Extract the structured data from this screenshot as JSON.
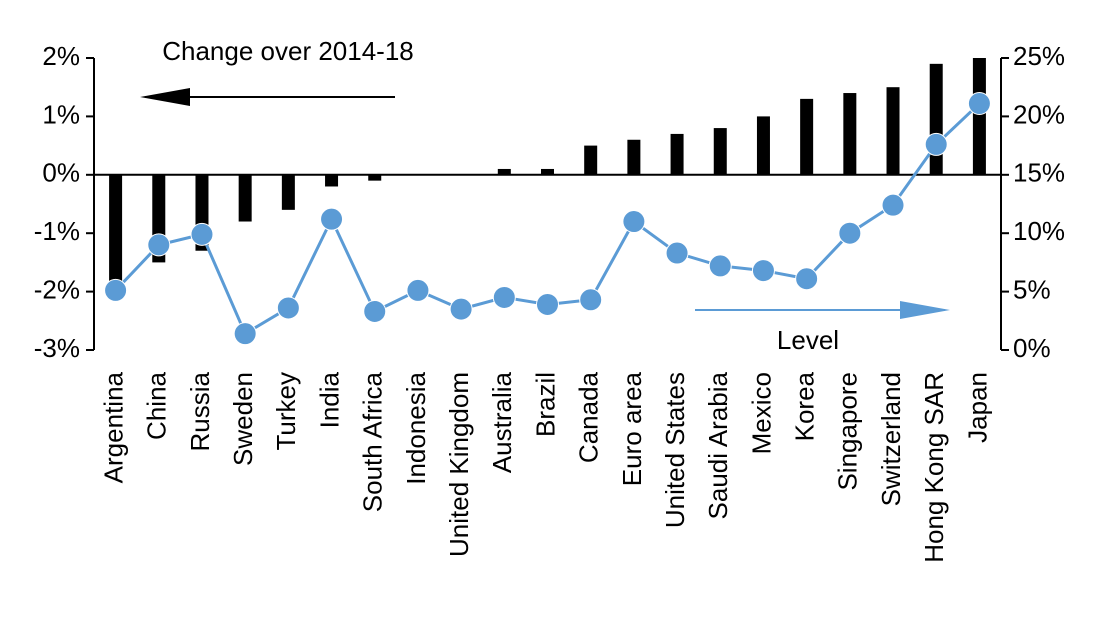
{
  "chart_data": {
    "type": "bar",
    "categories": [
      "Argentina",
      "China",
      "Russia",
      "Sweden",
      "Turkey",
      "India",
      "South Africa",
      "Indonesia",
      "United Kingdom",
      "Australia",
      "Brazil",
      "Canada",
      "Euro area",
      "United States",
      "Saudi Arabia",
      "Mexico",
      "Korea",
      "Singapore",
      "Switzerland",
      "Hong Kong SAR",
      "Japan"
    ],
    "series": [
      {
        "name": "Change over 2014-18",
        "type": "bar",
        "color": "#000000",
        "axis": "y",
        "values": [
          -1.9,
          -1.5,
          -1.3,
          -0.8,
          -0.6,
          -0.2,
          -0.1,
          0,
          0,
          0.1,
          0.1,
          0.5,
          0.6,
          0.7,
          0.8,
          1.0,
          1.3,
          1.4,
          1.5,
          1.9,
          2.0
        ]
      },
      {
        "name": "Level",
        "type": "line",
        "color": "#5b9bd5",
        "axis": "y2",
        "values": [
          5.1,
          9.0,
          9.9,
          1.4,
          3.6,
          11.2,
          3.3,
          5.1,
          3.5,
          4.5,
          3.9,
          4.3,
          11.0,
          8.3,
          7.2,
          6.8,
          6.1,
          10.0,
          12.4,
          17.6,
          21.1
        ]
      }
    ],
    "ylim": [
      -3,
      2
    ],
    "yticks": [
      {
        "value": -3,
        "label": "-3%"
      },
      {
        "value": -2,
        "label": "-2%"
      },
      {
        "value": -1,
        "label": "-1%"
      },
      {
        "value": 0,
        "label": "0%"
      },
      {
        "value": 1,
        "label": "1%"
      },
      {
        "value": 2,
        "label": "2%"
      }
    ],
    "y2lim": [
      0,
      25
    ],
    "y2ticks": [
      {
        "value": 0,
        "label": "0%"
      },
      {
        "value": 5,
        "label": "5%"
      },
      {
        "value": 10,
        "label": "10%"
      },
      {
        "value": 15,
        "label": "15%"
      },
      {
        "value": 20,
        "label": "20%"
      },
      {
        "value": 25,
        "label": "25%"
      }
    ],
    "grid": false
  }
}
